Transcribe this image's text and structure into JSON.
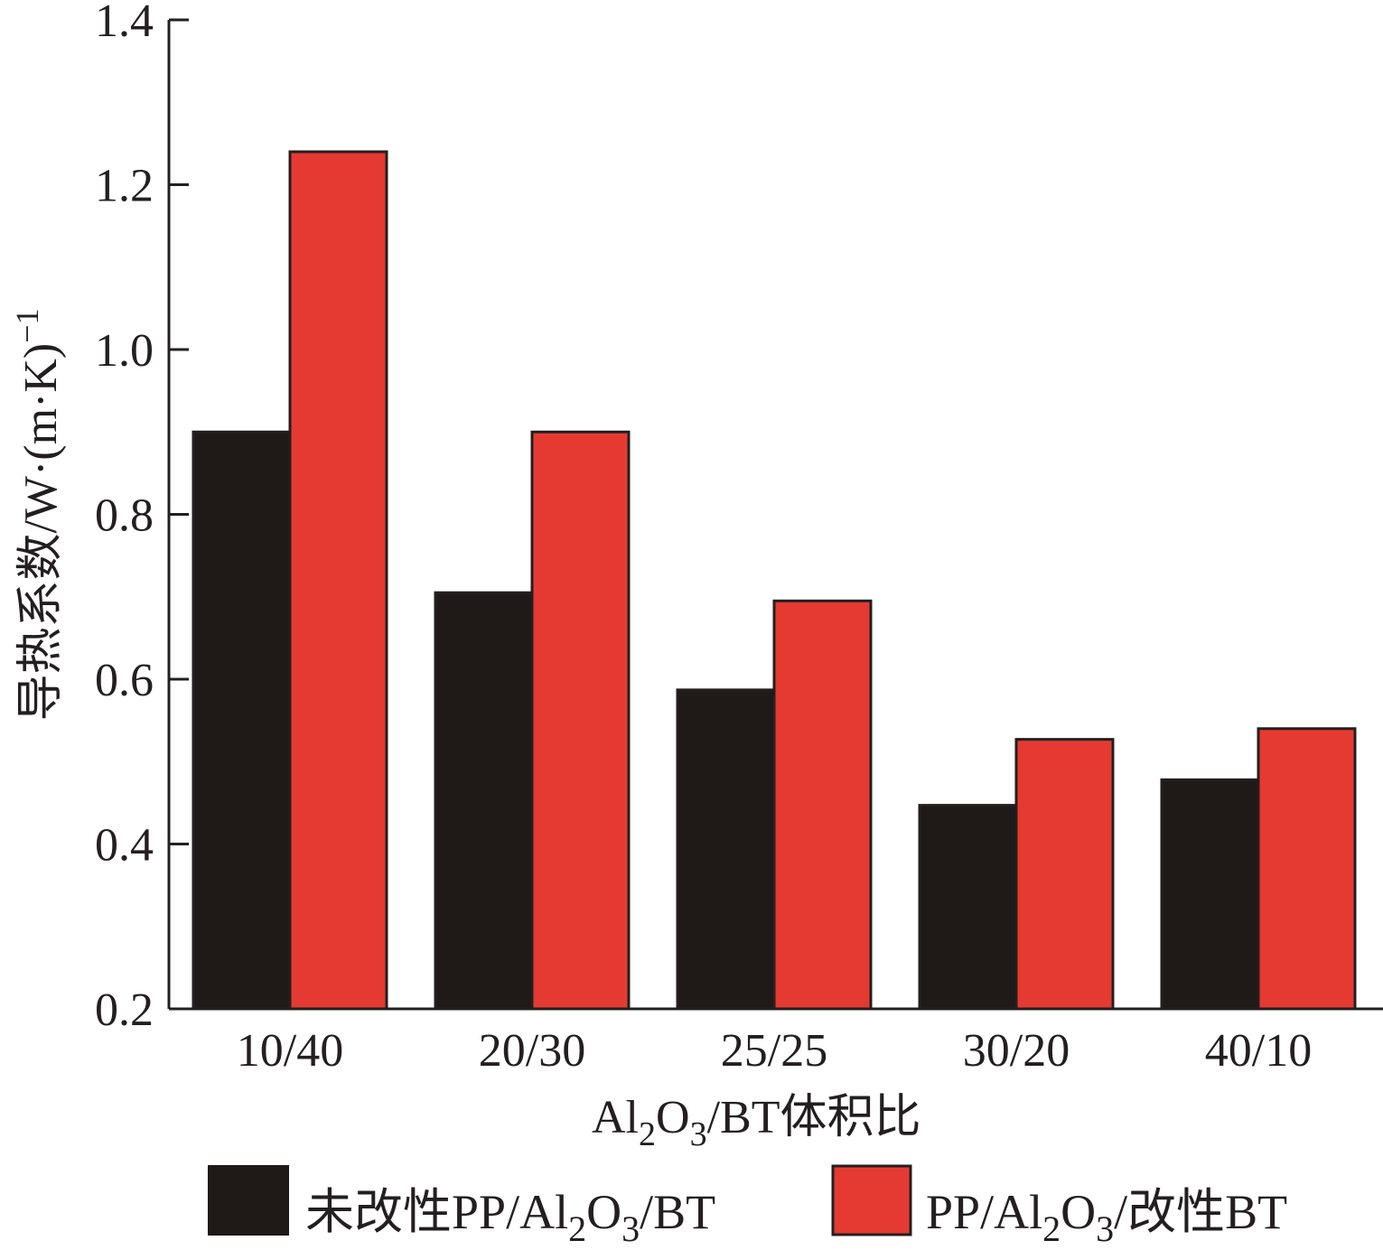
{
  "chart_data": {
    "type": "bar",
    "categories": [
      "10/40",
      "20/30",
      "25/25",
      "30/20",
      "40/10"
    ],
    "series": [
      {
        "name": "未改性PP/Al2O3/BT",
        "color": "#1f1a17",
        "values": [
          0.9,
          0.705,
          0.587,
          0.447,
          0.478
        ]
      },
      {
        "name": "PP/Al2O3/改性BT",
        "color": "#e53a31",
        "values": [
          1.24,
          0.9,
          0.695,
          0.527,
          0.54
        ]
      }
    ],
    "xlabel": "Al2O3/BT体积比",
    "ylabel": "导热系数/W·(m·K)-1",
    "ylim": [
      0.2,
      1.4
    ],
    "yticks": [
      "0.2",
      "0.4",
      "0.6",
      "0.8",
      "1.0",
      "1.2",
      "1.4"
    ],
    "grid": false,
    "legend_position": "bottom"
  }
}
